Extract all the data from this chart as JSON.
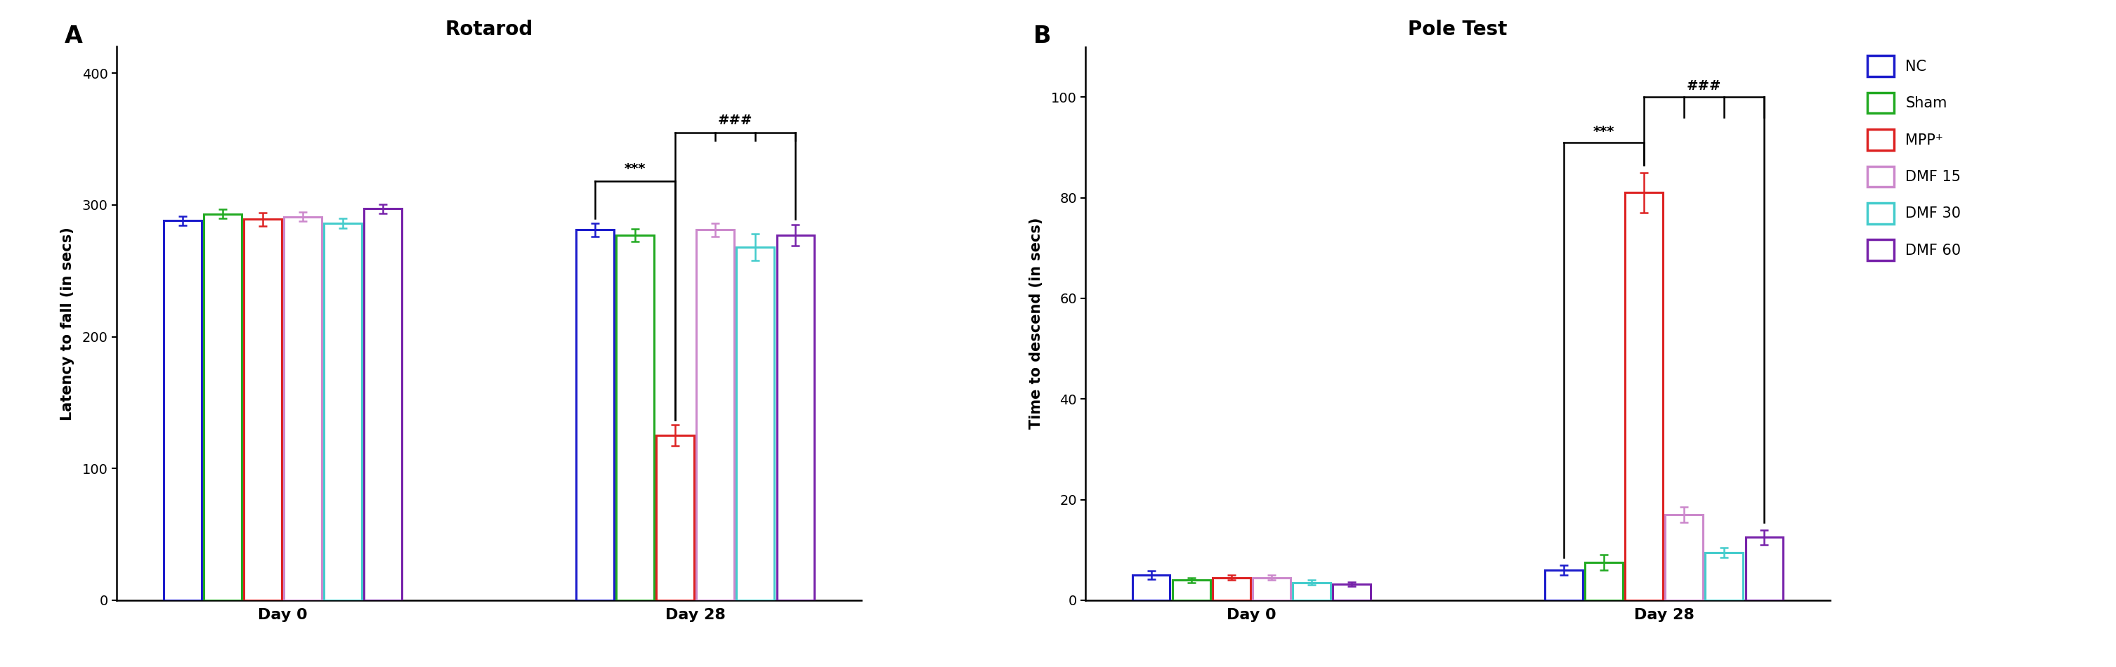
{
  "rotarod": {
    "title": "Rotarod",
    "ylabel": "Latency to fall (in secs)",
    "ylim": [
      0,
      420
    ],
    "yticks": [
      0,
      100,
      200,
      300,
      400
    ],
    "groups": [
      "NC",
      "Sham",
      "MPP+",
      "DMF 15",
      "DMF 30",
      "DMF 60"
    ],
    "colors": [
      "#1c1ccc",
      "#22aa22",
      "#dd2222",
      "#cc88cc",
      "#44cccc",
      "#7722aa"
    ],
    "day0_means": [
      288,
      293,
      289,
      291,
      286,
      297
    ],
    "day0_sems": [
      3.5,
      3.5,
      5.0,
      3.5,
      3.5,
      3.5
    ],
    "day28_means": [
      281,
      277,
      125,
      281,
      268,
      277
    ],
    "day28_sems": [
      5.0,
      5.0,
      8.0,
      5.0,
      10.0,
      8.0
    ],
    "xlabel_day0": "Day 0",
    "xlabel_day28": "Day 28"
  },
  "pole": {
    "title": "Pole Test",
    "ylabel": "Time to descend (in secs)",
    "ylim": [
      0,
      110
    ],
    "yticks": [
      0,
      20,
      40,
      60,
      80,
      100
    ],
    "groups": [
      "NC",
      "Sham",
      "MPP+",
      "DMF 15",
      "DMF 30",
      "DMF 60"
    ],
    "colors": [
      "#1c1ccc",
      "#22aa22",
      "#dd2222",
      "#cc88cc",
      "#44cccc",
      "#7722aa"
    ],
    "day0_means": [
      5.0,
      4.0,
      4.5,
      4.5,
      3.5,
      3.2
    ],
    "day0_sems": [
      0.8,
      0.5,
      0.5,
      0.5,
      0.5,
      0.4
    ],
    "day28_means": [
      6.0,
      7.5,
      81.0,
      17.0,
      9.5,
      12.5
    ],
    "day28_sems": [
      1.0,
      1.5,
      4.0,
      1.5,
      1.0,
      1.5
    ],
    "xlabel_day0": "Day 0",
    "xlabel_day28": "Day 28"
  },
  "legend_labels": [
    "NC",
    "Sham",
    "MPP⁺",
    "DMF 15",
    "DMF 30",
    "DMF 60"
  ],
  "legend_colors": [
    "#1c1ccc",
    "#22aa22",
    "#dd2222",
    "#cc88cc",
    "#44cccc",
    "#7722aa"
  ],
  "panel_A_label": "A",
  "panel_B_label": "B"
}
